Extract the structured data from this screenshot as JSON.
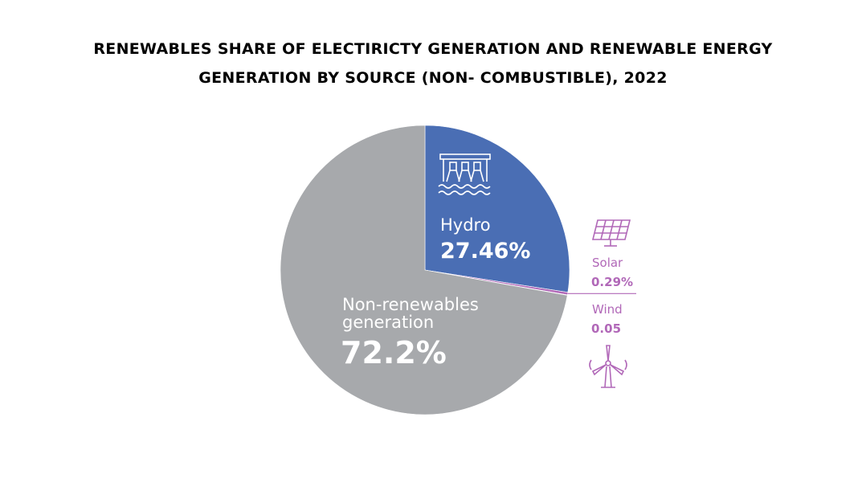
{
  "title_lines": [
    "RENEWABLES SHARE OF ELECTIRICTY GENERATION AND RENEWABLE ENERGY",
    "GENERATION BY SOURCE (NON- COMBUSTIBLE), 2022"
  ],
  "colors": {
    "hydro": "#4a6eb4",
    "non_renewables": "#a7a9ac",
    "solar_wind": "#b168b8",
    "white": "#ffffff"
  },
  "chart_data": {
    "type": "pie",
    "title": "RENEWABLES SHARE OF ELECTIRICTY GENERATION AND RENEWABLE ENERGY GENERATION BY SOURCE (NON- COMBUSTIBLE), 2022",
    "slices": [
      {
        "key": "hydro",
        "label": "Hydro",
        "value": 27.46,
        "value_label": "27.46%",
        "icon": "hydro-dam-icon"
      },
      {
        "key": "solar",
        "label": "Solar",
        "value": 0.29,
        "value_label": "0.29%",
        "icon": "solar-panel-icon"
      },
      {
        "key": "wind",
        "label": "Wind",
        "value": 0.05,
        "value_label": "0.05",
        "icon": "wind-turbine-icon"
      },
      {
        "key": "non_renewables",
        "label_lines": [
          "Non-renewables",
          "generation"
        ],
        "value": 72.2,
        "value_label": "72.2%"
      }
    ]
  }
}
